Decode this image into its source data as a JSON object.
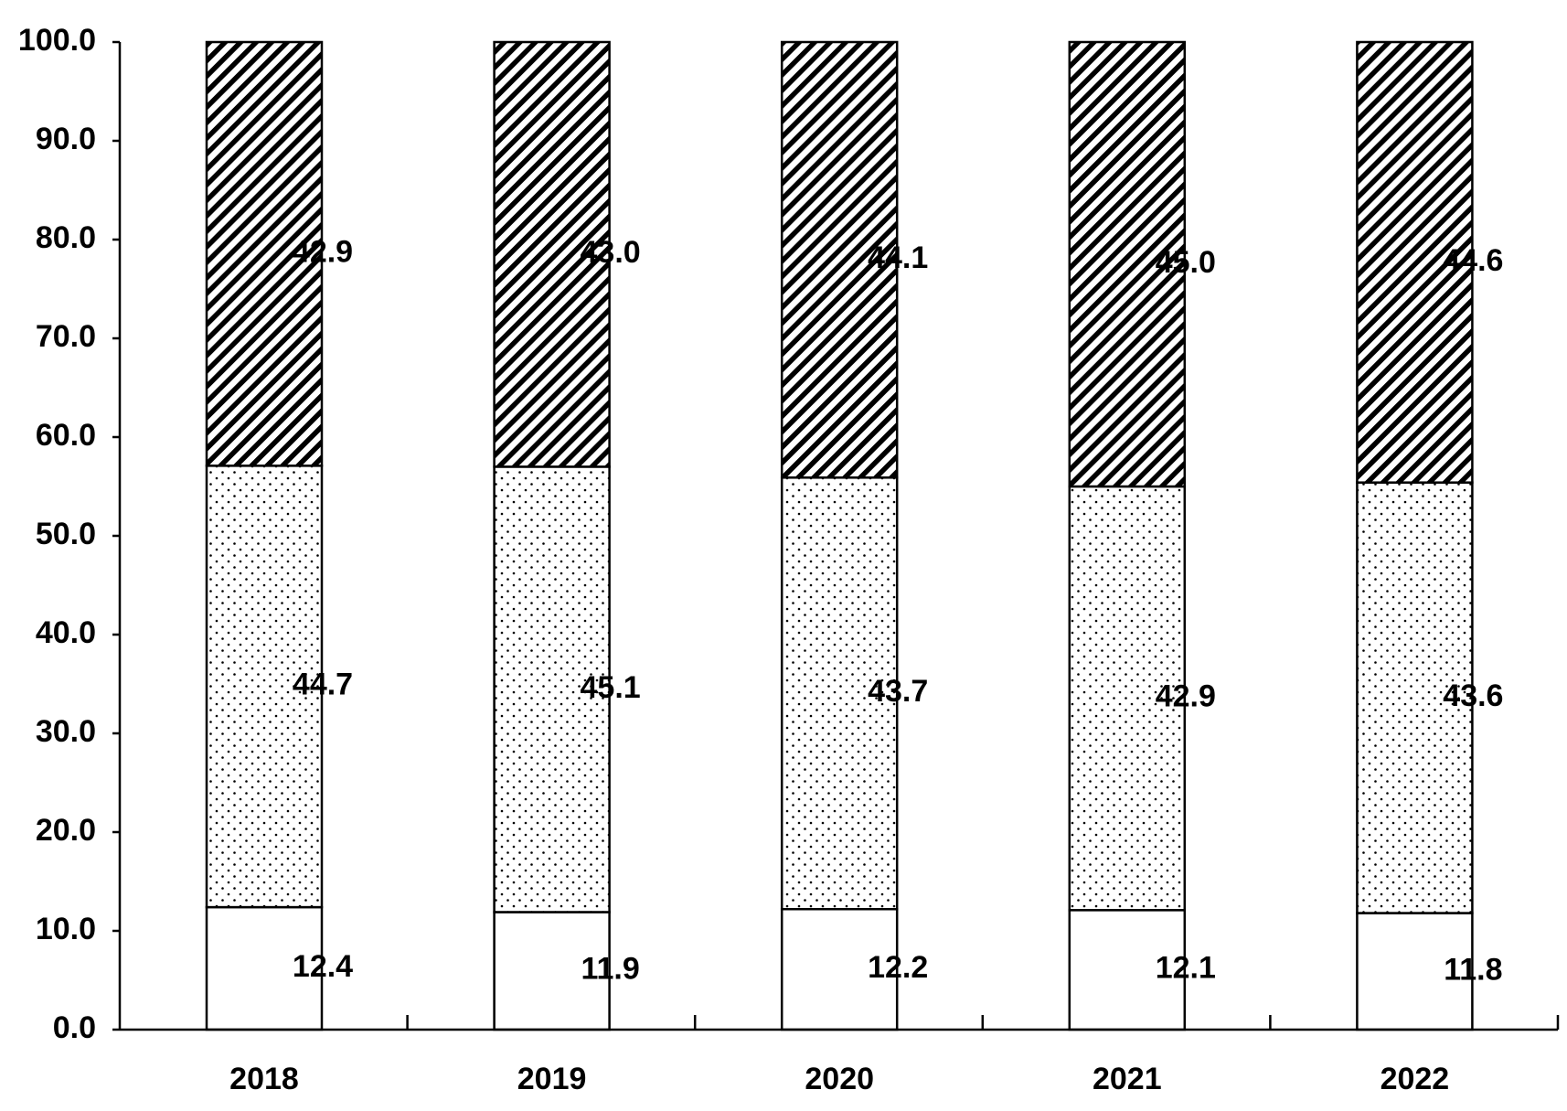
{
  "chart_data": {
    "type": "bar",
    "stacked": true,
    "categories": [
      "2018",
      "2019",
      "2020",
      "2021",
      "2022"
    ],
    "series": [
      {
        "values": [
          12.4,
          11.9,
          12.2,
          12.1,
          11.8
        ],
        "pattern": "plain",
        "color": "#ffffff"
      },
      {
        "values": [
          44.7,
          45.1,
          43.7,
          42.9,
          43.6
        ],
        "pattern": "dots",
        "color": "#ffffff"
      },
      {
        "values": [
          42.9,
          43.0,
          44.1,
          45.0,
          44.6
        ],
        "pattern": "diagonal-hatch",
        "color": "#000000"
      }
    ],
    "value_labels": [
      [
        "12.4",
        "11.9",
        "12.2",
        "12.1",
        "11.8"
      ],
      [
        "44.7",
        "45.1",
        "43.7",
        "42.9",
        "43.6"
      ],
      [
        "42.9",
        "43.0",
        "44.1",
        "45.0",
        "44.6"
      ]
    ],
    "y_ticks": [
      "0.0",
      "10.0",
      "20.0",
      "30.0",
      "40.0",
      "50.0",
      "60.0",
      "70.0",
      "80.0",
      "90.0",
      "100.0"
    ],
    "ylim": [
      0,
      100
    ],
    "grid": false,
    "legend": "none",
    "title": "",
    "xlabel": "",
    "ylabel": ""
  }
}
